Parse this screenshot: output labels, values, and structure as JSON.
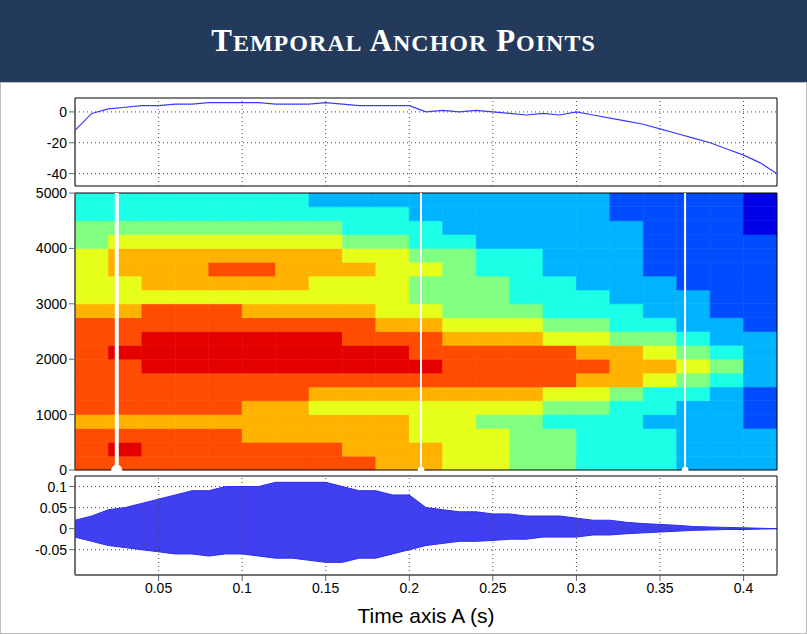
{
  "title": "TEMPORAL ANCHOR POINTS",
  "chart_data": [
    {
      "type": "line",
      "color": "#3b3bff",
      "grid": true,
      "tick_labels": "y",
      "x": [
        0,
        0.01,
        0.02,
        0.03,
        0.04,
        0.05,
        0.06,
        0.07,
        0.08,
        0.09,
        0.1,
        0.11,
        0.12,
        0.13,
        0.14,
        0.15,
        0.16,
        0.17,
        0.18,
        0.19,
        0.2,
        0.21,
        0.22,
        0.23,
        0.24,
        0.25,
        0.26,
        0.27,
        0.28,
        0.29,
        0.3,
        0.31,
        0.32,
        0.33,
        0.34,
        0.35,
        0.36,
        0.37,
        0.38,
        0.39,
        0.4,
        0.41,
        0.42
      ],
      "values": [
        -12,
        -1,
        2,
        3,
        4,
        4,
        5,
        5,
        6,
        6,
        6,
        6,
        5,
        5,
        5,
        6,
        5,
        4,
        4,
        4,
        4,
        0,
        1,
        0,
        1,
        0,
        -1,
        -2,
        -1,
        -2,
        0,
        -2,
        -4,
        -6,
        -8,
        -11,
        -14,
        -17,
        -20,
        -24,
        -28,
        -33,
        -40
      ],
      "xlim": [
        0,
        0.42
      ],
      "xticks": [
        0.05,
        0.1,
        0.15,
        0.2,
        0.25,
        0.3,
        0.35,
        0.4
      ],
      "ylim": [
        -48,
        9
      ],
      "yticks": [
        -40,
        -20,
        0
      ]
    },
    {
      "type": "heatmap",
      "grid": false,
      "tick_labels": "y",
      "x_edges": [
        0,
        0.02,
        0.04,
        0.06,
        0.08,
        0.1,
        0.12,
        0.14,
        0.16,
        0.18,
        0.2,
        0.22,
        0.24,
        0.26,
        0.28,
        0.3,
        0.32,
        0.34,
        0.36,
        0.38,
        0.4,
        0.42
      ],
      "y_edges": [
        0,
        250,
        500,
        750,
        1000,
        1250,
        1500,
        1750,
        2000,
        2250,
        2500,
        2750,
        3000,
        3250,
        3500,
        3750,
        4000,
        4250,
        4500,
        4750,
        5000
      ],
      "cells": [
        [
          8,
          8,
          8,
          8,
          8,
          8,
          8,
          8,
          8,
          7,
          7,
          6,
          6,
          5,
          5,
          4,
          4,
          4,
          3,
          3,
          3
        ],
        [
          8,
          9,
          8,
          8,
          8,
          8,
          8,
          8,
          7,
          7,
          7,
          6,
          6,
          5,
          5,
          4,
          4,
          4,
          3,
          3,
          3
        ],
        [
          8,
          8,
          8,
          8,
          8,
          7,
          7,
          7,
          7,
          7,
          6,
          6,
          6,
          5,
          5,
          4,
          4,
          4,
          3,
          3,
          3
        ],
        [
          7,
          7,
          7,
          7,
          7,
          7,
          7,
          7,
          7,
          7,
          6,
          6,
          5,
          5,
          4,
          4,
          4,
          3,
          3,
          3,
          2
        ],
        [
          8,
          8,
          8,
          8,
          8,
          7,
          7,
          6,
          6,
          6,
          6,
          6,
          6,
          6,
          5,
          5,
          4,
          4,
          3,
          3,
          2
        ],
        [
          8,
          8,
          8,
          8,
          8,
          8,
          8,
          7,
          7,
          7,
          7,
          7,
          7,
          7,
          6,
          6,
          5,
          4,
          4,
          3,
          2
        ],
        [
          8,
          8,
          8,
          8,
          8,
          8,
          8,
          8,
          8,
          8,
          8,
          8,
          8,
          8,
          8,
          7,
          7,
          6,
          5,
          4,
          3
        ],
        [
          8,
          8,
          9,
          9,
          9,
          9,
          9,
          9,
          9,
          9,
          9,
          8,
          8,
          8,
          8,
          8,
          7,
          7,
          6,
          5,
          3
        ],
        [
          8,
          9,
          9,
          9,
          9,
          9,
          9,
          9,
          9,
          9,
          8,
          8,
          8,
          8,
          8,
          7,
          7,
          6,
          5,
          4,
          3
        ],
        [
          8,
          8,
          9,
          9,
          9,
          9,
          9,
          9,
          8,
          8,
          8,
          7,
          7,
          7,
          6,
          6,
          5,
          5,
          4,
          3,
          3
        ],
        [
          8,
          8,
          8,
          8,
          8,
          8,
          8,
          8,
          8,
          7,
          7,
          6,
          6,
          6,
          5,
          5,
          4,
          4,
          3,
          3,
          2
        ],
        [
          7,
          7,
          8,
          8,
          8,
          7,
          7,
          7,
          7,
          6,
          6,
          5,
          5,
          5,
          4,
          4,
          4,
          3,
          3,
          2,
          2
        ],
        [
          6,
          6,
          6,
          6,
          6,
          6,
          6,
          6,
          6,
          6,
          5,
          5,
          5,
          4,
          4,
          4,
          3,
          3,
          3,
          2,
          2
        ],
        [
          6,
          6,
          7,
          7,
          7,
          7,
          7,
          6,
          6,
          6,
          5,
          5,
          5,
          4,
          4,
          3,
          3,
          3,
          2,
          2,
          2
        ],
        [
          6,
          7,
          7,
          7,
          8,
          8,
          7,
          7,
          7,
          6,
          6,
          5,
          4,
          4,
          3,
          3,
          3,
          2,
          2,
          2,
          2
        ],
        [
          6,
          7,
          7,
          7,
          7,
          7,
          7,
          7,
          6,
          6,
          5,
          5,
          4,
          4,
          3,
          3,
          3,
          2,
          2,
          2,
          2
        ],
        [
          5,
          6,
          6,
          6,
          6,
          6,
          6,
          6,
          5,
          5,
          4,
          4,
          3,
          3,
          3,
          3,
          3,
          2,
          2,
          2,
          2
        ],
        [
          5,
          5,
          5,
          5,
          5,
          5,
          5,
          5,
          4,
          4,
          4,
          3,
          3,
          3,
          3,
          3,
          3,
          2,
          2,
          2,
          1
        ],
        [
          4,
          4,
          4,
          4,
          4,
          4,
          4,
          4,
          4,
          4,
          3,
          3,
          3,
          3,
          3,
          3,
          2,
          2,
          2,
          2,
          1
        ],
        [
          4,
          4,
          4,
          4,
          4,
          4,
          4,
          3,
          3,
          3,
          3,
          3,
          3,
          3,
          3,
          3,
          2,
          2,
          2,
          2,
          1
        ]
      ],
      "zlim": [
        0,
        10
      ],
      "anchor_points": [
        0.025,
        0.207,
        0.365
      ],
      "xlim": [
        0,
        0.42
      ],
      "ylim": [
        0,
        5000
      ],
      "yticks": [
        0,
        1000,
        2000,
        3000,
        4000,
        5000
      ]
    },
    {
      "type": "area",
      "color": "#2b2bf0",
      "grid": true,
      "xlabel": "Time axis A (s)",
      "x": [
        0,
        0.01,
        0.02,
        0.03,
        0.04,
        0.05,
        0.06,
        0.07,
        0.08,
        0.09,
        0.1,
        0.11,
        0.12,
        0.13,
        0.14,
        0.15,
        0.16,
        0.17,
        0.18,
        0.19,
        0.2,
        0.21,
        0.22,
        0.23,
        0.24,
        0.25,
        0.26,
        0.27,
        0.28,
        0.29,
        0.3,
        0.31,
        0.32,
        0.33,
        0.34,
        0.35,
        0.36,
        0.37,
        0.38,
        0.39,
        0.4,
        0.41,
        0.42
      ],
      "upper": [
        0.02,
        0.03,
        0.045,
        0.05,
        0.06,
        0.07,
        0.08,
        0.09,
        0.09,
        0.1,
        0.1,
        0.1,
        0.11,
        0.11,
        0.11,
        0.11,
        0.1,
        0.09,
        0.09,
        0.08,
        0.08,
        0.05,
        0.045,
        0.04,
        0.04,
        0.035,
        0.035,
        0.03,
        0.03,
        0.03,
        0.025,
        0.02,
        0.02,
        0.015,
        0.012,
        0.01,
        0.008,
        0.005,
        0.004,
        0.003,
        0.002,
        0.001,
        0
      ],
      "lower": [
        -0.02,
        -0.03,
        -0.04,
        -0.045,
        -0.05,
        -0.055,
        -0.06,
        -0.06,
        -0.065,
        -0.06,
        -0.06,
        -0.065,
        -0.07,
        -0.07,
        -0.075,
        -0.08,
        -0.08,
        -0.07,
        -0.07,
        -0.06,
        -0.05,
        -0.04,
        -0.035,
        -0.03,
        -0.03,
        -0.028,
        -0.025,
        -0.025,
        -0.02,
        -0.02,
        -0.02,
        -0.015,
        -0.015,
        -0.012,
        -0.01,
        -0.008,
        -0.006,
        -0.004,
        -0.003,
        -0.002,
        -0.002,
        -0.001,
        0
      ],
      "xlim": [
        0,
        0.42
      ],
      "xticks": [
        0.05,
        0.1,
        0.15,
        0.2,
        0.25,
        0.3,
        0.35,
        0.4
      ],
      "ylim": [
        -0.11,
        0.125
      ],
      "yticks": [
        -0.05,
        0,
        0.05,
        0.1
      ]
    }
  ]
}
